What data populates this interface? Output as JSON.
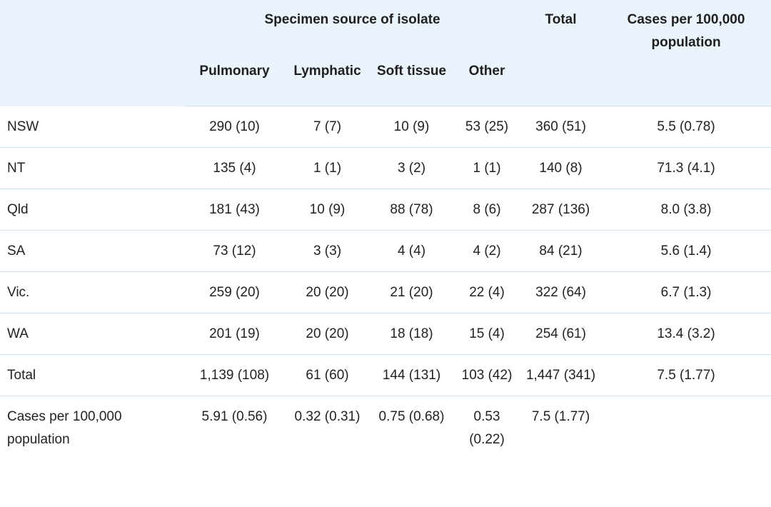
{
  "table": {
    "group_header": "Specimen source of isolate",
    "columns": [
      "Pulmonary",
      "Lymphatic",
      "Soft tissue",
      "Other"
    ],
    "total_header": "Total",
    "rate_header": "Cases per 100,000 population",
    "rows": [
      {
        "label": "NSW",
        "cells": [
          "290 (10)",
          "7 (7)",
          "10 (9)",
          "53 (25)",
          "360 (51)",
          "5.5 (0.78)"
        ]
      },
      {
        "label": "NT",
        "cells": [
          "135 (4)",
          "1 (1)",
          "3 (2)",
          "1 (1)",
          "140 (8)",
          "71.3 (4.1)"
        ]
      },
      {
        "label": "Qld",
        "cells": [
          "181 (43)",
          "10 (9)",
          "88 (78)",
          "8 (6)",
          "287 (136)",
          "8.0 (3.8)"
        ]
      },
      {
        "label": "SA",
        "cells": [
          "73 (12)",
          "3 (3)",
          "4 (4)",
          "4 (2)",
          "84 (21)",
          "5.6 (1.4)"
        ]
      },
      {
        "label": "Vic.",
        "cells": [
          "259 (20)",
          "20 (20)",
          "21 (20)",
          "22 (4)",
          "322 (64)",
          "6.7 (1.3)"
        ]
      },
      {
        "label": "WA",
        "cells": [
          "201 (19)",
          "20 (20)",
          "18 (18)",
          "15 (4)",
          "254 (61)",
          "13.4 (3.2)"
        ]
      },
      {
        "label": "Total",
        "cells": [
          "1,139 (108)",
          "61 (60)",
          "144 (131)",
          "103 (42)",
          "1,447 (341)",
          "7.5 (1.77)"
        ]
      },
      {
        "label": "Cases per 100,000 population",
        "cells": [
          "5.91 (0.56)",
          "0.32 (0.31)",
          "0.75 (0.68)",
          "0.53 (0.22)",
          "7.5 (1.77)",
          ""
        ]
      }
    ]
  },
  "colors": {
    "header_background": "#eaf3fb",
    "row_divider": "#cfe1ef",
    "text": "#222222"
  }
}
